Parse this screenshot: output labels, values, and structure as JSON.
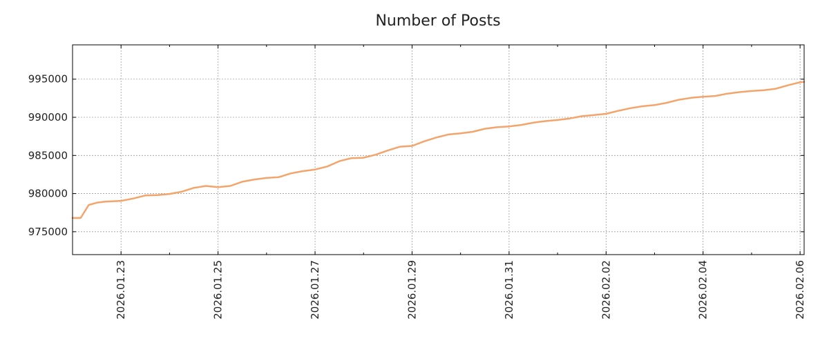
{
  "chart_data": {
    "type": "line",
    "title": "Number of Posts",
    "xlabel": "",
    "ylabel": "",
    "x_type": "date",
    "xlim": [
      "2026-01-22 00:00",
      "2026-02-06 02:00"
    ],
    "ylim": [
      972000,
      999500
    ],
    "x_ticks": [
      "2026-01-23",
      "2026-01-25",
      "2026-01-27",
      "2026-01-29",
      "2026-01-31",
      "2026-02-02",
      "2026-02-04",
      "2026-02-06"
    ],
    "x_tick_labels": [
      "2026.01.23",
      "2026.01.25",
      "2026.01.27",
      "2026.01.29",
      "2026.01.31",
      "2026.02.02",
      "2026.02.04",
      "2026.02.06"
    ],
    "y_ticks": [
      975000,
      980000,
      985000,
      990000,
      995000
    ],
    "y_tick_labels": [
      "975000",
      "980000",
      "985000",
      "990000",
      "995000"
    ],
    "grid": true,
    "legend": "none",
    "colors": {
      "line": "#f4a46a",
      "grid": "#9a9a9a",
      "axis": "#000000"
    },
    "series": [
      {
        "values_x": [
          "2026-01-22 00:00",
          "2026-01-22 04:00",
          "2026-01-22 08:00",
          "2026-01-22 12:00",
          "2026-01-22 16:00",
          "2026-01-23 00:00",
          "2026-01-23 06:00",
          "2026-01-23 12:00",
          "2026-01-23 18:00",
          "2026-01-24 00:00",
          "2026-01-24 06:00",
          "2026-01-24 12:00",
          "2026-01-24 18:00",
          "2026-01-25 00:00",
          "2026-01-25 06:00",
          "2026-01-25 12:00",
          "2026-01-25 18:00",
          "2026-01-26 00:00",
          "2026-01-26 06:00",
          "2026-01-26 12:00",
          "2026-01-26 18:00",
          "2026-01-27 00:00",
          "2026-01-27 06:00",
          "2026-01-27 12:00",
          "2026-01-27 18:00",
          "2026-01-28 00:00",
          "2026-01-28 06:00",
          "2026-01-28 12:00",
          "2026-01-28 18:00",
          "2026-01-29 00:00",
          "2026-01-29 06:00",
          "2026-01-29 12:00",
          "2026-01-29 18:00",
          "2026-01-30 00:00",
          "2026-01-30 06:00",
          "2026-01-30 12:00",
          "2026-01-30 18:00",
          "2026-01-31 00:00",
          "2026-01-31 06:00",
          "2026-01-31 12:00",
          "2026-01-31 18:00",
          "2026-02-01 00:00",
          "2026-02-01 06:00",
          "2026-02-01 12:00",
          "2026-02-01 18:00",
          "2026-02-02 00:00",
          "2026-02-02 06:00",
          "2026-02-02 12:00",
          "2026-02-02 18:00",
          "2026-02-03 00:00",
          "2026-02-03 06:00",
          "2026-02-03 12:00",
          "2026-02-03 18:00",
          "2026-02-04 00:00",
          "2026-02-04 06:00",
          "2026-02-04 12:00",
          "2026-02-04 18:00",
          "2026-02-05 00:00",
          "2026-02-05 06:00",
          "2026-02-05 12:00",
          "2026-02-05 18:00",
          "2026-02-06 00:00",
          "2026-02-06 02:00"
        ],
        "values": [
          976800,
          976800,
          978500,
          978800,
          978950,
          979050,
          979350,
          979750,
          979800,
          979950,
          980250,
          980750,
          981000,
          980850,
          981000,
          981550,
          981850,
          982050,
          982150,
          982650,
          982950,
          983150,
          983550,
          984250,
          984650,
          984700,
          985100,
          985650,
          986150,
          986250,
          986850,
          987350,
          987750,
          987900,
          988100,
          988500,
          988700,
          988800,
          989000,
          989300,
          989500,
          989650,
          989850,
          990150,
          990300,
          990450,
          990850,
          991200,
          991450,
          991600,
          991900,
          992300,
          992550,
          992700,
          992800,
          993100,
          993300,
          993450,
          993550,
          993750,
          994200,
          994600,
          994650
        ]
      }
    ]
  }
}
